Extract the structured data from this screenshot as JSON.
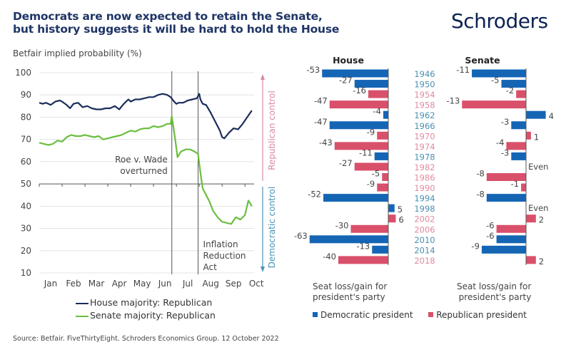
{
  "header": {
    "title_line1": "Democrats are now expected to retain the Senate,",
    "title_line2": "but history suggests it will be hard to hold the House",
    "brand": "Schroders"
  },
  "source": "Source: Betfair. FiveThirtyEight. Schroders Economics Group. 12 October 2022",
  "colors": {
    "house_line": "#1b2d5c",
    "senate_line": "#6abf3f",
    "democratic": "#1565b5",
    "republican": "#d9506a",
    "dem_year_text": "#4a90b0",
    "rep_year_text": "#e08aa0",
    "rep_arrow": "#d98aa0",
    "dem_arrow": "#4a93b8"
  },
  "chart_data": [
    {
      "type": "line",
      "title": "",
      "ylabel": "Betfair implied probability (%)",
      "xlabel": "",
      "ylim": [
        10,
        100
      ],
      "yticks": [
        100,
        90,
        80,
        70,
        60,
        50,
        40,
        30,
        20,
        10
      ],
      "grid": true,
      "x_tick_labels": [
        "Jan",
        "Feb",
        "Mar",
        "Apr",
        "May",
        "Jun",
        "Jul",
        "Aug",
        "Sep",
        "Oct"
      ],
      "x_range_months": [
        0,
        9.4
      ],
      "series": [
        {
          "name": "House majority: Republican",
          "x": [
            0,
            0.15,
            0.3,
            0.5,
            0.7,
            0.9,
            1.0,
            1.2,
            1.35,
            1.5,
            1.7,
            1.9,
            2.1,
            2.3,
            2.5,
            2.7,
            2.9,
            3.1,
            3.3,
            3.5,
            3.7,
            3.9,
            4.0,
            4.2,
            4.4,
            4.6,
            4.8,
            5.0,
            5.2,
            5.4,
            5.6,
            5.75,
            5.9,
            6.0,
            6.1,
            6.3,
            6.5,
            6.7,
            6.9,
            7.0,
            7.05,
            7.15,
            7.3,
            7.5,
            7.7,
            7.9,
            8.0,
            8.1,
            8.3,
            8.5,
            8.7,
            8.9,
            9.1,
            9.3
          ],
          "y": [
            86.5,
            86,
            86.5,
            85.5,
            87,
            87.5,
            87,
            85.5,
            84,
            86,
            86.5,
            84.5,
            85,
            84,
            83.5,
            83.5,
            84,
            84,
            85,
            83.5,
            86,
            88,
            87,
            88,
            88,
            88.5,
            89,
            89,
            90,
            90.5,
            90,
            89,
            87,
            86,
            86.5,
            86.5,
            87.5,
            88,
            88.5,
            90.5,
            88,
            86,
            85.5,
            82,
            78,
            74,
            71,
            70.5,
            73,
            75,
            74.5,
            77,
            80,
            83
          ]
        },
        {
          "name": "Senate majority: Republican",
          "x": [
            0,
            0.2,
            0.4,
            0.6,
            0.8,
            1.0,
            1.2,
            1.4,
            1.6,
            1.8,
            2.0,
            2.2,
            2.4,
            2.6,
            2.8,
            3.0,
            3.2,
            3.4,
            3.6,
            3.8,
            4.0,
            4.2,
            4.4,
            4.6,
            4.8,
            5.0,
            5.2,
            5.4,
            5.6,
            5.75,
            5.8,
            5.95,
            6.05,
            6.2,
            6.4,
            6.6,
            6.8,
            6.95,
            7.05,
            7.15,
            7.3,
            7.45,
            7.6,
            7.8,
            8.0,
            8.2,
            8.4,
            8.6,
            8.8,
            9.0,
            9.15,
            9.3
          ],
          "y": [
            68.5,
            68,
            67.5,
            68,
            69.5,
            69,
            71,
            72,
            71.5,
            71.5,
            72,
            71.5,
            71,
            71.5,
            70,
            70.5,
            71,
            71.5,
            72,
            73,
            74,
            73.5,
            74.5,
            75,
            75,
            76,
            75.5,
            76,
            77,
            77,
            80.5,
            70,
            62,
            64.5,
            65.5,
            65.5,
            64.5,
            63.5,
            55,
            48,
            45,
            42,
            38,
            35,
            33,
            32.5,
            32,
            35,
            34,
            36,
            42.5,
            40
          ]
        }
      ],
      "annotations": [
        {
          "text_line1": "Roe v. Wade",
          "text_line2": "overturned",
          "x_month": 5.8
        },
        {
          "text_line1": "Inflation",
          "text_line2": "Reduction",
          "text_line3": "Act",
          "x_month": 6.95
        }
      ],
      "side_labels": {
        "upper": "Republican control",
        "lower": "Democratic control"
      },
      "legend": "bottom"
    },
    {
      "type": "bar",
      "title": "House",
      "orientation": "horizontal",
      "categories": [
        "1946",
        "1950",
        "1954",
        "1958",
        "1962",
        "1966",
        "1970",
        "1974",
        "1978",
        "1982",
        "1986",
        "1990",
        "1994",
        "1998",
        "2002",
        "2006",
        "2010",
        "2014",
        "2018"
      ],
      "values": [
        -53,
        -27,
        -16,
        -47,
        -4,
        -47,
        -9,
        -43,
        -11,
        -27,
        -5,
        -9,
        -52,
        5,
        6,
        -30,
        -63,
        -13,
        -40
      ],
      "party": [
        "D",
        "D",
        "R",
        "R",
        "D",
        "D",
        "R",
        "R",
        "D",
        "R",
        "R",
        "R",
        "D",
        "D",
        "R",
        "R",
        "D",
        "D",
        "R"
      ],
      "xlabel_line1": "Seat loss/gain for",
      "xlabel_line2": "president's party"
    },
    {
      "type": "bar",
      "title": "Senate",
      "orientation": "horizontal",
      "categories": [
        "1946",
        "1950",
        "1954",
        "1958",
        "1962",
        "1966",
        "1970",
        "1974",
        "1978",
        "1982",
        "1986",
        "1990",
        "1994",
        "1998",
        "2002",
        "2006",
        "2010",
        "2014",
        "2018"
      ],
      "values": [
        -11,
        -5,
        -2,
        -13,
        4,
        -3,
        1,
        -4,
        -3,
        0,
        -8,
        -1,
        -8,
        0,
        2,
        -6,
        -6,
        -9,
        2
      ],
      "value_labels": [
        "-11",
        "-5",
        "-2",
        "-13",
        "4",
        "-3",
        "1",
        "-4",
        "-3",
        "Even",
        "-8",
        "-1",
        "-8",
        "Even",
        "2",
        "-6",
        "-6",
        "-9",
        "2"
      ],
      "party": [
        "D",
        "D",
        "R",
        "R",
        "D",
        "D",
        "R",
        "R",
        "D",
        "R",
        "R",
        "R",
        "D",
        "D",
        "R",
        "R",
        "D",
        "D",
        "R"
      ],
      "xlabel_line1": "Seat loss/gain for",
      "xlabel_line2": "president's party"
    }
  ],
  "bar_legend": {
    "democratic": "Democratic president",
    "republican": "Republican president"
  }
}
